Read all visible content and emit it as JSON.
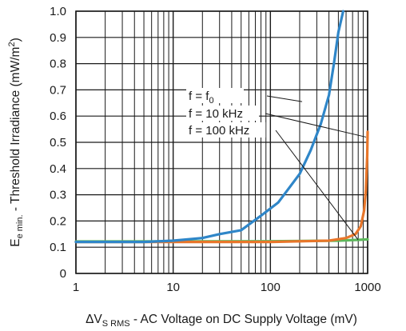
{
  "chart_data": {
    "type": "line",
    "x_scale": "log",
    "xlim": [
      1,
      1000
    ],
    "ylim": [
      0,
      1.0
    ],
    "x_ticks": [
      1,
      10,
      100,
      1000
    ],
    "x_tick_labels": [
      "1",
      "10",
      "100",
      "1000"
    ],
    "y_ticks": [
      0,
      0.1,
      0.2,
      0.3,
      0.4,
      0.5,
      0.6,
      0.7,
      0.8,
      0.9,
      1.0
    ],
    "y_tick_labels": [
      "0",
      "0.1",
      "0.2",
      "0.3",
      "0.4",
      "0.5",
      "0.6",
      "0.7",
      "0.8",
      "0.9",
      "1.0"
    ],
    "grid": true,
    "xlabel": {
      "prefix": "ΔV",
      "sub": "S RMS",
      "suffix": " - AC Voltage on DC Supply Voltage (mV)"
    },
    "ylabel": {
      "prefix": "E",
      "sub": "e min.",
      "middle": " - Threshold Irradiance (mW/m",
      "sup": "2",
      "suffix": ")"
    },
    "series": [
      {
        "label": {
          "text": "f = f",
          "sub": "0"
        },
        "color": "#2f86c8",
        "points": [
          [
            1,
            0.12
          ],
          [
            5,
            0.12
          ],
          [
            10,
            0.125
          ],
          [
            20,
            0.135
          ],
          [
            30,
            0.15
          ],
          [
            50,
            0.165
          ],
          [
            80,
            0.22
          ],
          [
            120,
            0.27
          ],
          [
            200,
            0.38
          ],
          [
            260,
            0.47
          ],
          [
            330,
            0.57
          ],
          [
            400,
            0.68
          ],
          [
            450,
            0.8
          ],
          [
            500,
            0.92
          ],
          [
            560,
            1.0
          ]
        ]
      },
      {
        "label": {
          "text": "f = 10 kHz",
          "sub": ""
        },
        "color": "#e8762a",
        "points": [
          [
            1,
            0.12
          ],
          [
            100,
            0.12
          ],
          [
            400,
            0.125
          ],
          [
            600,
            0.135
          ],
          [
            750,
            0.15
          ],
          [
            850,
            0.18
          ],
          [
            920,
            0.24
          ],
          [
            960,
            0.32
          ],
          [
            990,
            0.45
          ],
          [
            1000,
            0.54
          ]
        ]
      },
      {
        "label": {
          "text": "f = 100 kHz",
          "sub": ""
        },
        "color": "#5cb85c",
        "points": [
          [
            1,
            0.122
          ],
          [
            100,
            0.123
          ],
          [
            500,
            0.125
          ],
          [
            800,
            0.128
          ],
          [
            1000,
            0.13
          ]
        ]
      }
    ]
  }
}
